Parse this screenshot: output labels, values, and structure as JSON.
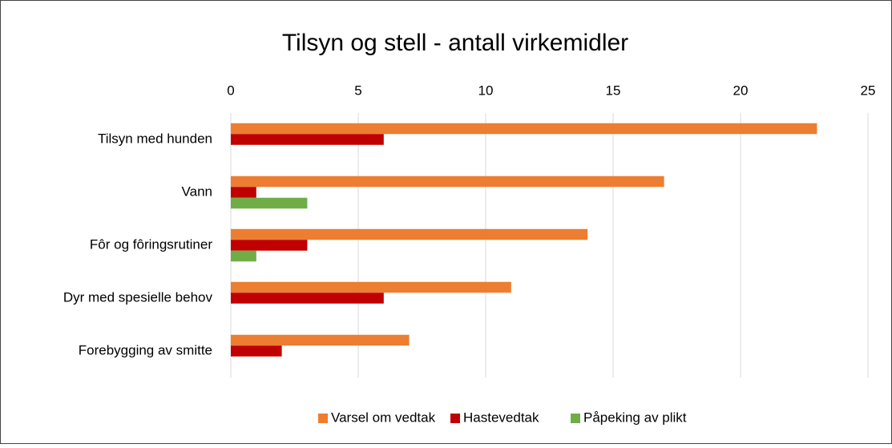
{
  "chart_data": {
    "type": "bar",
    "orientation": "horizontal",
    "title": "Tilsyn og stell - antall virkemidler",
    "categories": [
      "Tilsyn med hunden",
      "Vann",
      "Fôr og fôringsrutiner",
      "Dyr med spesielle behov",
      "Forebygging av smitte"
    ],
    "series": [
      {
        "name": "Varsel om vedtak",
        "color": "#ed7d31",
        "values": [
          23,
          17,
          14,
          11,
          7
        ]
      },
      {
        "name": "Hastevedtak",
        "color": "#c00000",
        "values": [
          6,
          1,
          3,
          6,
          2
        ]
      },
      {
        "name": "Påpeking av plikt",
        "color": "#70ad47",
        "values": [
          0,
          3,
          1,
          0,
          0
        ]
      }
    ],
    "xlim": [
      0,
      25
    ],
    "xticks": [
      0,
      5,
      10,
      15,
      20,
      25
    ],
    "grid": true,
    "legend": "bottom"
  }
}
